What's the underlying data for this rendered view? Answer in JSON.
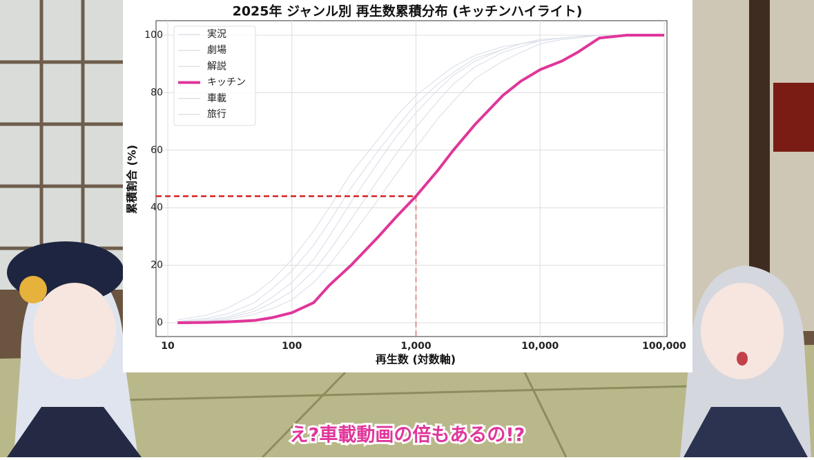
{
  "chart_data": {
    "type": "line",
    "title": "2025年 ジャンル別 再生数累積分布 (キッチンハイライト)",
    "xlabel": "再生数 (対数軸)",
    "ylabel": "累積割合 (%)",
    "xscale": "log",
    "grid": true,
    "legend": "upper left",
    "x": [
      12,
      20,
      30,
      50,
      70,
      100,
      150,
      200,
      300,
      500,
      700,
      1000,
      1500,
      2000,
      3000,
      5000,
      7000,
      10000,
      15000,
      20000,
      30000,
      50000,
      100000
    ],
    "series": [
      {
        "name": "実況",
        "color": "#dde1ea",
        "values": [
          0.5,
          1.5,
          3,
          7,
          12,
          18,
          27,
          35,
          47,
          60,
          68,
          76,
          83,
          87,
          92,
          95,
          97,
          98,
          99,
          99.5,
          100,
          100,
          100
        ]
      },
      {
        "name": "劇場",
        "color": "#dde1ea",
        "values": [
          0.3,
          1,
          2,
          5,
          9,
          14,
          22,
          30,
          42,
          56,
          65,
          73,
          81,
          86,
          91,
          95,
          97,
          98,
          99,
          99.5,
          100,
          100,
          100
        ]
      },
      {
        "name": "解説",
        "color": "#dde1ea",
        "values": [
          0.2,
          0.6,
          1.5,
          4,
          7,
          11,
          18,
          25,
          36,
          50,
          59,
          68,
          77,
          83,
          89,
          94,
          96,
          98,
          99,
          99.5,
          100,
          100,
          100
        ]
      },
      {
        "name": "キッチン",
        "color": "#e0369a",
        "values": [
          0,
          0.1,
          0.3,
          0.8,
          1.8,
          3.5,
          7,
          13,
          20,
          30,
          37,
          44,
          53,
          60,
          69,
          79,
          84,
          88,
          91,
          94,
          99,
          100,
          100
        ]
      },
      {
        "name": "車載",
        "color": "#dde1ea",
        "values": [
          1,
          2.5,
          5,
          10,
          15,
          22,
          32,
          40,
          52,
          64,
          72,
          79,
          85,
          89,
          93,
          96,
          97,
          98.5,
          99,
          99.5,
          100,
          100,
          100
        ]
      },
      {
        "name": "旅行",
        "color": "#dde1ea",
        "values": [
          0.2,
          0.5,
          1,
          3,
          5,
          8,
          14,
          20,
          30,
          43,
          52,
          61,
          71,
          77,
          85,
          91,
          94,
          97,
          98.5,
          99,
          100,
          100,
          100
        ]
      }
    ],
    "reference": {
      "x": 1000,
      "y": 44,
      "color": "#d62020"
    },
    "xlim": [
      10,
      100000
    ],
    "xticks": [
      10,
      100,
      {
        "value": 1000,
        "label": "1,000"
      },
      {
        "value": 10000,
        "label": "10,000"
      },
      {
        "value": 100000,
        "label": "100,000"
      }
    ],
    "ylim": [
      0,
      100
    ],
    "yticks": [
      0,
      20,
      40,
      60,
      80,
      100
    ]
  },
  "caption": "え?車載動画の倍もあるの!?"
}
